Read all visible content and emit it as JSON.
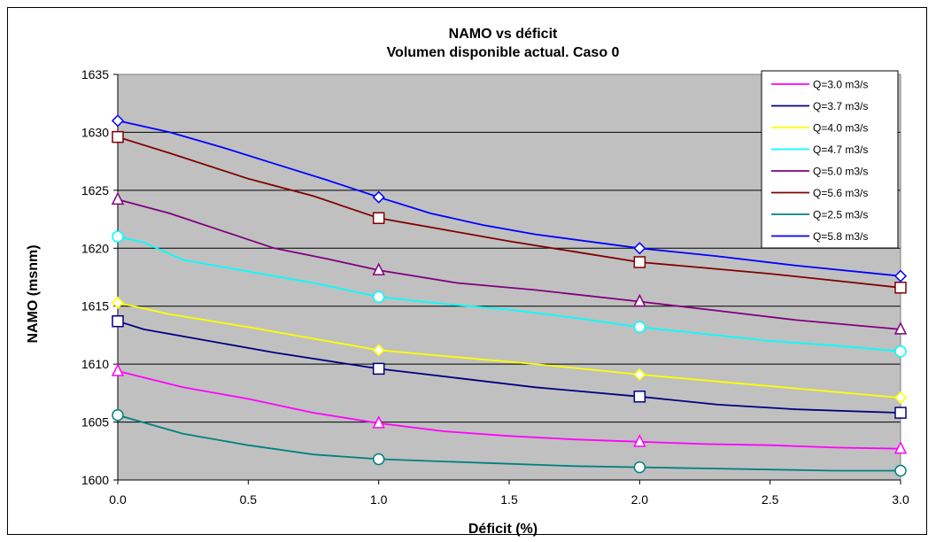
{
  "chart_data": {
    "type": "line",
    "title": "NAMO vs déficit",
    "subtitle": "Volumen disponible actual. Caso 0",
    "xlabel": "Déficit (%)",
    "ylabel": "NAMO (msnm)",
    "xlim": [
      0,
      3
    ],
    "ylim": [
      1600,
      1635
    ],
    "x_ticks": [
      "0.0",
      "0.5",
      "1.0",
      "1.5",
      "2.0",
      "2.5",
      "3.0"
    ],
    "y_ticks": [
      "1600",
      "1605",
      "1610",
      "1615",
      "1620",
      "1625",
      "1630",
      "1635"
    ],
    "grid": true,
    "plot_background": "#c0c0c0",
    "legend_position": "top-right",
    "series": [
      {
        "name": "Q=3.0 m3/s",
        "color": "#ff00ff",
        "marker": "triangle",
        "x": [
          0,
          0.25,
          0.5,
          0.75,
          1.0,
          1.25,
          1.5,
          1.75,
          2.0,
          2.25,
          2.5,
          2.75,
          3.0
        ],
        "y": [
          1609.4,
          1608.0,
          1607.0,
          1605.8,
          1604.9,
          1604.2,
          1603.8,
          1603.5,
          1603.3,
          1603.1,
          1603.0,
          1602.8,
          1602.7
        ],
        "markers_at": [
          0,
          1,
          2,
          3
        ]
      },
      {
        "name": "Q=3.7  m3/s",
        "color": "#000080",
        "marker": "square",
        "x": [
          0,
          0.1,
          0.3,
          0.6,
          1.0,
          1.3,
          1.6,
          2.0,
          2.3,
          2.6,
          3.0
        ],
        "y": [
          1613.7,
          1613.0,
          1612.2,
          1611.0,
          1609.6,
          1608.8,
          1608.0,
          1607.2,
          1606.5,
          1606.1,
          1605.8
        ],
        "markers_at": [
          0,
          1,
          2,
          3
        ]
      },
      {
        "name": "Q=4.0  m3/s",
        "color": "#ffff00",
        "marker": "diamond",
        "x": [
          0,
          0.2,
          0.5,
          0.8,
          1.0,
          1.3,
          1.6,
          2.0,
          2.3,
          2.6,
          3.0
        ],
        "y": [
          1615.3,
          1614.3,
          1613.2,
          1612.0,
          1611.2,
          1610.6,
          1610.0,
          1609.1,
          1608.5,
          1607.9,
          1607.1
        ],
        "markers_at": [
          0,
          1,
          2,
          3
        ]
      },
      {
        "name": "Q=4.7 m3/s",
        "color": "#00ffff",
        "marker": "circle",
        "x": [
          0,
          0.1,
          0.25,
          0.5,
          0.75,
          1.0,
          1.25,
          1.5,
          1.75,
          2.0,
          2.25,
          2.5,
          2.75,
          3.0
        ],
        "y": [
          1621.0,
          1620.5,
          1619.0,
          1618.0,
          1617.0,
          1615.8,
          1615.2,
          1614.7,
          1614.0,
          1613.2,
          1612.6,
          1612.0,
          1611.6,
          1611.1
        ],
        "markers_at": [
          0,
          1,
          2,
          3
        ]
      },
      {
        "name": "Q=5.0  m3/s",
        "color": "#800080",
        "marker": "triangle",
        "x": [
          0,
          0.2,
          0.4,
          0.6,
          0.8,
          1.0,
          1.3,
          1.6,
          2.0,
          2.3,
          2.6,
          3.0
        ],
        "y": [
          1624.2,
          1623.0,
          1621.5,
          1620.0,
          1619.1,
          1618.1,
          1617.0,
          1616.4,
          1615.4,
          1614.6,
          1613.8,
          1613.0
        ],
        "markers_at": [
          0,
          1,
          2,
          3
        ]
      },
      {
        "name": "Q=5.6  m3/s",
        "color": "#800000",
        "marker": "square",
        "x": [
          0,
          0.2,
          0.5,
          0.75,
          1.0,
          1.25,
          1.5,
          1.75,
          2.0,
          2.25,
          2.5,
          2.75,
          3.0
        ],
        "y": [
          1629.6,
          1628.2,
          1626.0,
          1624.5,
          1622.6,
          1621.6,
          1620.6,
          1619.7,
          1618.8,
          1618.3,
          1617.8,
          1617.2,
          1616.6
        ],
        "markers_at": [
          0,
          1,
          2,
          3
        ]
      },
      {
        "name": "Q=2.5  m3/s",
        "color": "#008080",
        "marker": "circle",
        "x": [
          0,
          0.25,
          0.5,
          0.75,
          1.0,
          1.25,
          1.5,
          1.75,
          2.0,
          2.25,
          2.5,
          2.75,
          3.0
        ],
        "y": [
          1605.6,
          1604.0,
          1603.0,
          1602.2,
          1601.8,
          1601.6,
          1601.4,
          1601.2,
          1601.1,
          1601.0,
          1600.9,
          1600.8,
          1600.8
        ],
        "markers_at": [
          0,
          1,
          2,
          3
        ]
      },
      {
        "name": "Q=5.8  m3/s",
        "color": "#0000ff",
        "marker": "diamond",
        "x": [
          0,
          0.2,
          0.4,
          0.6,
          0.8,
          1.0,
          1.2,
          1.4,
          1.6,
          2.0,
          2.3,
          2.6,
          3.0
        ],
        "y": [
          1631.0,
          1630.0,
          1628.7,
          1627.3,
          1625.9,
          1624.4,
          1623.0,
          1622.0,
          1621.2,
          1620.0,
          1619.3,
          1618.5,
          1617.6
        ],
        "markers_at": [
          0,
          1,
          2,
          3
        ]
      }
    ]
  }
}
